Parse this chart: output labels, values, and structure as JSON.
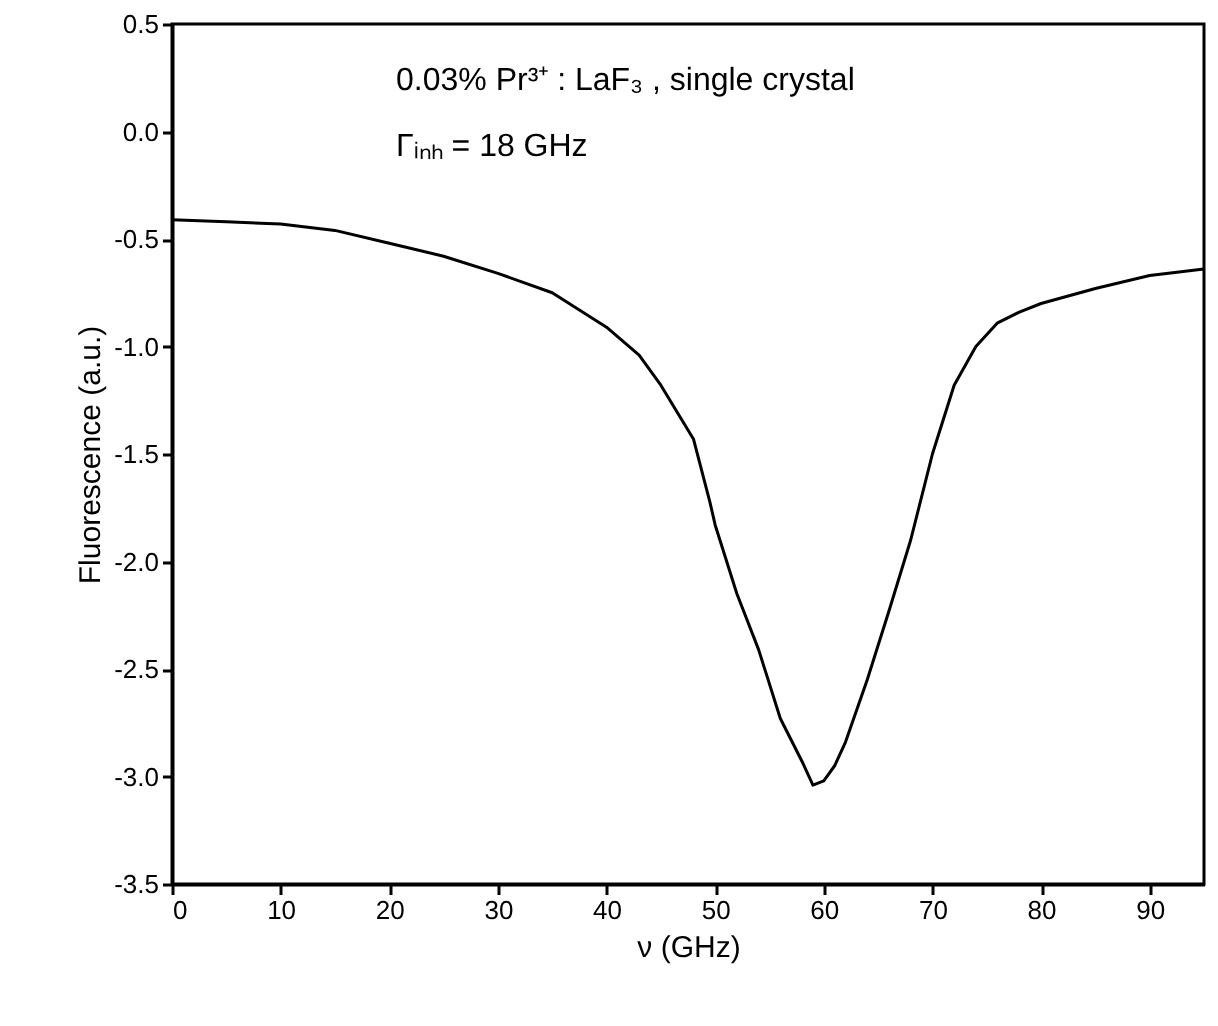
{
  "chart_data": {
    "type": "line",
    "xlabel": "ν (GHz)",
    "ylabel": "Fluorescence (a.u.)",
    "annotations": [
      "0.03% Pr³⁺ : LaF₃ , single crystal",
      "Γᵢₙₕ = 18 GHz"
    ],
    "x": [
      0,
      5,
      10,
      15,
      20,
      25,
      30,
      35,
      40,
      43,
      45,
      48,
      49.5,
      50,
      52,
      54,
      56,
      58,
      59,
      60,
      61,
      62,
      64,
      66,
      68,
      70,
      72,
      74,
      76,
      78,
      80,
      85,
      90,
      95
    ],
    "series": [
      {
        "color": "#000000",
        "values": [
          -0.41,
          -0.42,
          -0.43,
          -0.46,
          -0.52,
          -0.58,
          -0.66,
          -0.75,
          -0.91,
          -1.04,
          -1.18,
          -1.43,
          -1.72,
          -1.83,
          -2.15,
          -2.41,
          -2.73,
          -2.93,
          -3.04,
          -3.02,
          -2.95,
          -2.84,
          -2.55,
          -2.23,
          -1.9,
          -1.5,
          -1.18,
          -1.0,
          -0.89,
          -0.84,
          -0.8,
          -0.73,
          -0.67,
          -0.64
        ]
      }
    ],
    "xlim": [
      0,
      95
    ],
    "ylim": [
      -3.5,
      0.5
    ],
    "xticks": [
      0,
      10,
      20,
      30,
      40,
      50,
      60,
      70,
      80,
      90
    ],
    "yticks": [
      {
        "value": -3.5,
        "label": "-3.5"
      },
      {
        "value": -3.0,
        "label": "-3.0"
      },
      {
        "value": -2.5,
        "label": "-2.5"
      },
      {
        "value": -2.0,
        "label": "-2.0"
      },
      {
        "value": -1.5,
        "label": "-1.5"
      },
      {
        "value": -1.0,
        "label": "-1.0"
      },
      {
        "value": -0.5,
        "label": "-0.5"
      },
      {
        "value": 0.0,
        "label": "0.0"
      },
      {
        "value": 0.5,
        "label": "0.5"
      }
    ],
    "line_style": "solid",
    "marker": "none"
  }
}
